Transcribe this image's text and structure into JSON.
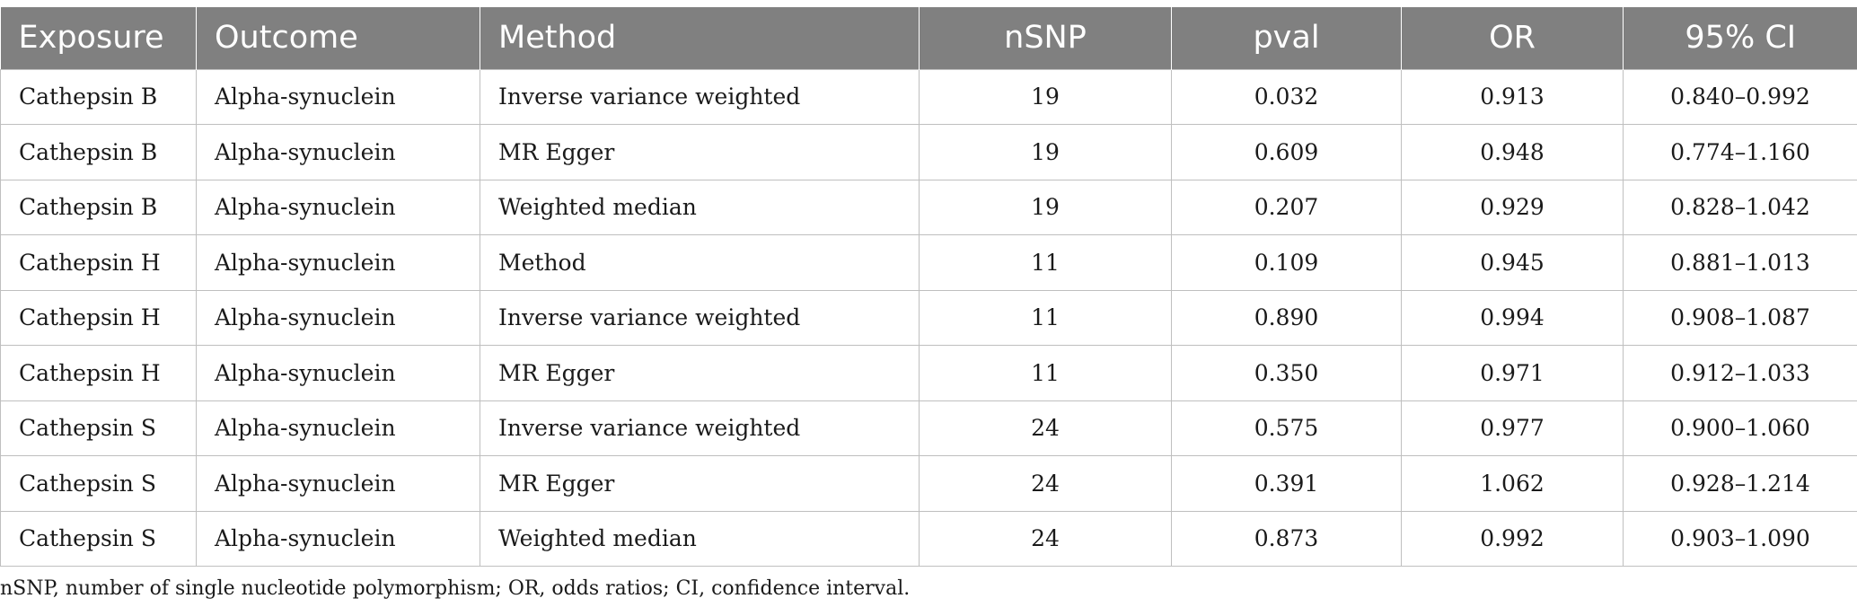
{
  "table": {
    "headers": [
      "Exposure",
      "Outcome",
      "Method",
      "nSNP",
      "pval",
      "OR",
      "95% CI"
    ],
    "rows": [
      [
        "Cathepsin B",
        "Alpha-synuclein",
        "Inverse variance weighted",
        "19",
        "0.032",
        "0.913",
        "0.840–0.992"
      ],
      [
        "Cathepsin B",
        "Alpha-synuclein",
        "MR Egger",
        "19",
        "0.609",
        "0.948",
        "0.774–1.160"
      ],
      [
        "Cathepsin B",
        "Alpha-synuclein",
        "Weighted median",
        "19",
        "0.207",
        "0.929",
        "0.828–1.042"
      ],
      [
        "Cathepsin H",
        "Alpha-synuclein",
        "Method",
        "11",
        "0.109",
        "0.945",
        "0.881–1.013"
      ],
      [
        "Cathepsin H",
        "Alpha-synuclein",
        "Inverse variance weighted",
        "11",
        "0.890",
        "0.994",
        "0.908–1.087"
      ],
      [
        "Cathepsin H",
        "Alpha-synuclein",
        "MR Egger",
        "11",
        "0.350",
        "0.971",
        "0.912–1.033"
      ],
      [
        "Cathepsin S",
        "Alpha-synuclein",
        "Inverse variance weighted",
        "24",
        "0.575",
        "0.977",
        "0.900–1.060"
      ],
      [
        "Cathepsin S",
        "Alpha-synuclein",
        "MR Egger",
        "24",
        "0.391",
        "1.062",
        "0.928–1.214"
      ],
      [
        "Cathepsin S",
        "Alpha-synuclein",
        "Weighted median",
        "24",
        "0.873",
        "0.992",
        "0.903–1.090"
      ]
    ]
  },
  "footnote": "nSNP, number of single nucleotide polymorphism; OR, odds ratios; CI, confidence interval.",
  "colors": {
    "header_bg": "#808080",
    "header_text": "#ffffff",
    "grid": "#bfbfbf"
  }
}
